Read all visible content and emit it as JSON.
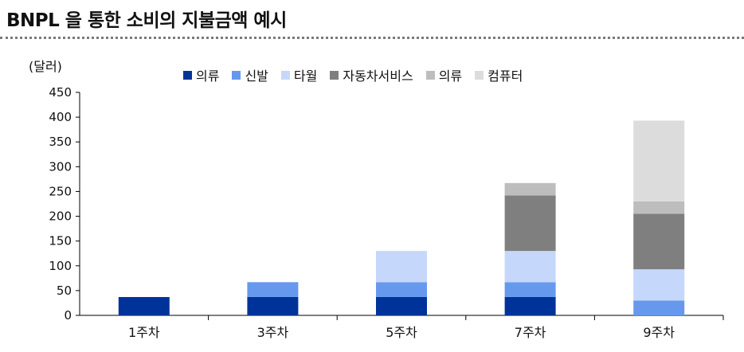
{
  "title": "BNPL 을 통한 소비의 지불금액 예시",
  "chart_data": {
    "type": "bar",
    "stacked": true,
    "ylabel": "(달러)",
    "ylim": [
      0,
      450
    ],
    "yticks": [
      "0",
      "50",
      "100",
      "150",
      "200",
      "250",
      "300",
      "350",
      "400",
      "450"
    ],
    "categories": [
      "1주차",
      "3주차",
      "5주차",
      "7주차",
      "9주차"
    ],
    "legend_position": "top",
    "series": [
      {
        "name": "의류",
        "color": "#003399",
        "values": [
          37,
          37,
          37,
          37,
          0
        ]
      },
      {
        "name": "신발",
        "color": "#6699ee",
        "values": [
          0,
          30,
          30,
          30,
          30
        ]
      },
      {
        "name": "타월",
        "color": "#c5d7fa",
        "values": [
          0,
          0,
          63,
          63,
          63
        ]
      },
      {
        "name": "자동차서비스",
        "color": "#7f7f7f",
        "values": [
          0,
          0,
          0,
          112,
          112
        ]
      },
      {
        "name": "의류",
        "color": "#bdbdbd",
        "values": [
          0,
          0,
          0,
          25,
          25
        ]
      },
      {
        "name": "컴퓨터",
        "color": "#dcdcdc",
        "values": [
          0,
          0,
          0,
          0,
          163
        ]
      }
    ]
  }
}
